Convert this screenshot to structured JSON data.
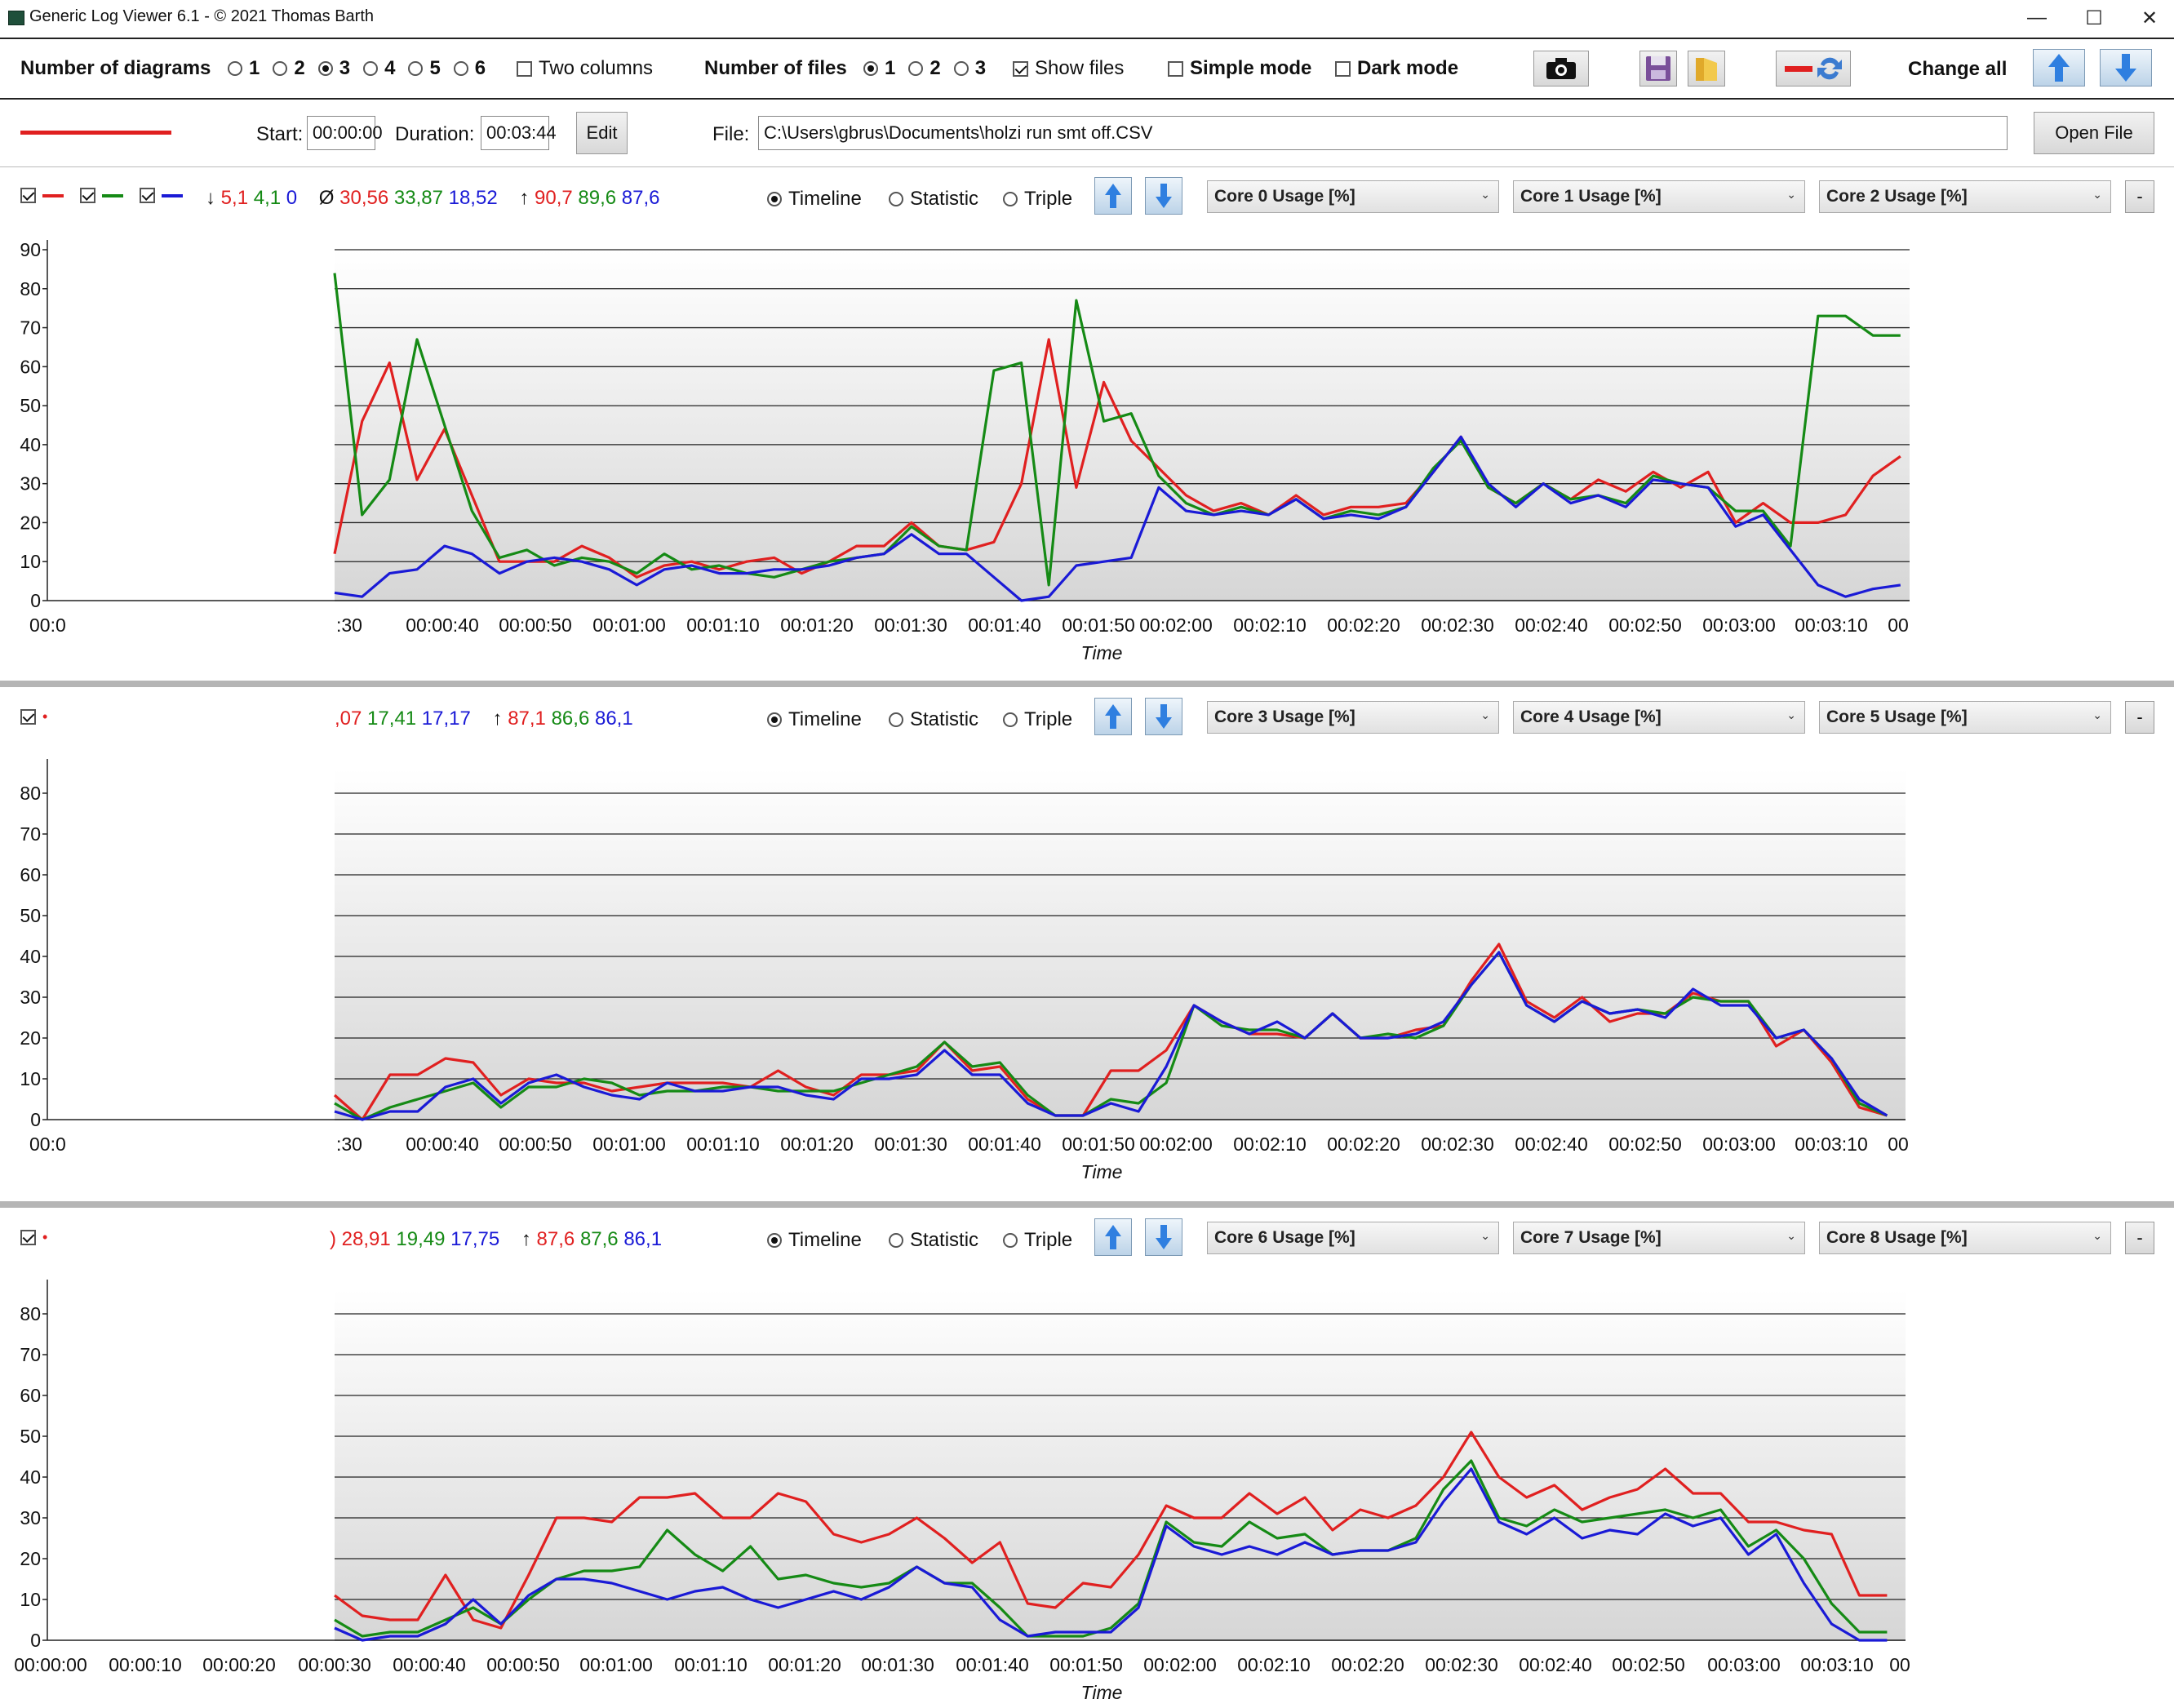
{
  "window": {
    "title": "Generic Log Viewer 6.1 - © 2021 Thomas Barth",
    "minimize": "—",
    "maximize": "☐",
    "close": "✕"
  },
  "toolbar": {
    "diagrams_label": "Number of diagrams",
    "diagram_options": [
      "1",
      "2",
      "3",
      "4",
      "5",
      "6"
    ],
    "diagram_selected": "3",
    "two_columns": "Two columns",
    "files_label": "Number of files",
    "file_options": [
      "1",
      "2",
      "3"
    ],
    "file_selected": "1",
    "show_files": "Show files",
    "simple_mode": "Simple mode",
    "dark_mode": "Dark mode",
    "change_all": "Change all",
    "icons": [
      "camera-icon",
      "save-icon",
      "folder-icon",
      "swap-icon",
      "arrow-up-icon",
      "arrow-down-icon"
    ]
  },
  "file_row": {
    "start_label": "Start:",
    "start_value": "00:00:00",
    "duration_label": "Duration:",
    "duration_value": "00:03:44",
    "edit": "Edit",
    "file_label": "File:",
    "file_path": "C:\\Users\\gbrus\\Documents\\holzi run smt off.CSV",
    "open_file": "Open File",
    "line_color": "#e02020"
  },
  "colors": {
    "s1": "#e02020",
    "s2": "#158a15",
    "s3": "#1a1ad6"
  },
  "panels": [
    {
      "stats": {
        "min_prefix": "↓",
        "min": [
          "5,1",
          "4,1",
          "0"
        ],
        "avg_prefix": "Ø",
        "avg": [
          "30,56",
          "33,87",
          "18,52"
        ],
        "max_prefix": "↑",
        "max": [
          "90,7",
          "89,6",
          "87,6"
        ]
      },
      "modes": [
        "Timeline",
        "Statistic",
        "Triple"
      ],
      "combos": [
        "Core 0 Usage [%]",
        "Core 1 Usage [%]",
        "Core 2 Usage [%]"
      ],
      "minus": "-"
    },
    {
      "stats": {
        "avg_partial": ",07",
        "avg": [
          "17,41",
          "17,17"
        ],
        "max_prefix": "↑",
        "max": [
          "87,1",
          "86,6",
          "86,1"
        ]
      },
      "modes": [
        "Timeline",
        "Statistic",
        "Triple"
      ],
      "combos": [
        "Core 3 Usage [%]",
        "Core 4 Usage [%]",
        "Core 5 Usage [%]"
      ],
      "minus": "-"
    },
    {
      "stats": {
        "avg_partial": ")",
        "avg": [
          "28,91",
          "19,49",
          "17,75"
        ],
        "max_prefix": "↑",
        "max": [
          "87,6",
          "87,6",
          "86,1"
        ]
      },
      "modes": [
        "Timeline",
        "Statistic",
        "Triple"
      ],
      "combos": [
        "Core 6 Usage [%]",
        "Core 7 Usage [%]",
        "Core 8 Usage [%]"
      ],
      "minus": "-"
    }
  ],
  "chart_data": [
    {
      "type": "line",
      "xlabel": "Time",
      "ylim": [
        0,
        90
      ],
      "yticks": [
        0,
        10,
        20,
        30,
        40,
        50,
        60,
        70,
        80,
        90
      ],
      "xticks": [
        "00:0",
        ":30",
        "00:00:40",
        "00:00:50",
        "00:01:00",
        "00:01:10",
        "00:01:20",
        "00:01:30",
        "00:01:40",
        "00:01:50",
        "00:02:00",
        "00:02:10",
        "00:02:20",
        "00:02:30",
        "00:02:40",
        "00:02:50",
        "00:03:00",
        "00:03:10",
        "00"
      ],
      "x": [
        30,
        33,
        36,
        39,
        42,
        45,
        48,
        51,
        54,
        57,
        60,
        63,
        66,
        69,
        72,
        75,
        78,
        81,
        84,
        87,
        90,
        93,
        96,
        99,
        102,
        105,
        108,
        111,
        114,
        117,
        120,
        123,
        126,
        129,
        132,
        135,
        138,
        141,
        144,
        147,
        150,
        153,
        156,
        159,
        162,
        165,
        168,
        171,
        174,
        177,
        180,
        183,
        186,
        189,
        192,
        195,
        198,
        201
      ],
      "series": [
        {
          "values": [
            12,
            46,
            61,
            31,
            44,
            27,
            10,
            10,
            10,
            14,
            11,
            6,
            9,
            10,
            8,
            10,
            11,
            7,
            10,
            14,
            14,
            20,
            14,
            13,
            15,
            30,
            67,
            29,
            56,
            41,
            34,
            27,
            23,
            25,
            22,
            27,
            22,
            24,
            24,
            25,
            33,
            42,
            29,
            25,
            30,
            26,
            31,
            28,
            33,
            29,
            33,
            20,
            25,
            20,
            20,
            22,
            32,
            37
          ]
        },
        {
          "values": [
            84,
            22,
            31,
            67,
            45,
            23,
            11,
            13,
            9,
            11,
            10,
            7,
            12,
            8,
            9,
            7,
            6,
            8,
            10,
            11,
            12,
            19,
            14,
            13,
            59,
            61,
            4,
            77,
            46,
            48,
            32,
            25,
            22,
            24,
            22,
            26,
            21,
            23,
            22,
            24,
            34,
            41,
            29,
            25,
            30,
            26,
            27,
            25,
            32,
            30,
            29,
            23,
            23,
            14,
            73,
            73,
            68,
            68
          ]
        },
        {
          "values": [
            2,
            1,
            7,
            8,
            14,
            12,
            7,
            10,
            11,
            10,
            8,
            4,
            8,
            9,
            7,
            7,
            8,
            8,
            9,
            11,
            12,
            17,
            12,
            12,
            6,
            0,
            1,
            9,
            10,
            11,
            29,
            23,
            22,
            23,
            22,
            26,
            21,
            22,
            21,
            24,
            33,
            42,
            30,
            24,
            30,
            25,
            27,
            24,
            31,
            30,
            29,
            19,
            22,
            13,
            4,
            1,
            3,
            4
          ]
        }
      ]
    },
    {
      "type": "line",
      "xlabel": "Time",
      "ylim": [
        0,
        86
      ],
      "yticks": [
        0,
        10,
        20,
        30,
        40,
        50,
        60,
        70,
        80
      ],
      "xticks": [
        "00:0",
        ":30",
        "00:00:40",
        "00:00:50",
        "00:01:00",
        "00:01:10",
        "00:01:20",
        "00:01:30",
        "00:01:40",
        "00:01:50",
        "00:02:00",
        "00:02:10",
        "00:02:20",
        "00:02:30",
        "00:02:40",
        "00:02:50",
        "00:03:00",
        "00:03:10",
        "00"
      ],
      "x": [
        30,
        33,
        36,
        39,
        42,
        45,
        48,
        51,
        54,
        57,
        60,
        63,
        66,
        69,
        72,
        75,
        78,
        81,
        84,
        87,
        90,
        93,
        96,
        99,
        102,
        105,
        108,
        111,
        114,
        117,
        120,
        123,
        126,
        129,
        132,
        135,
        138,
        141,
        144,
        147,
        150,
        153,
        156,
        159,
        162,
        165,
        168,
        171,
        174,
        177,
        180,
        183,
        186,
        189,
        192,
        195,
        198
      ],
      "series": [
        {
          "values": [
            6,
            0,
            11,
            11,
            15,
            14,
            6,
            10,
            9,
            9,
            7,
            8,
            9,
            9,
            9,
            8,
            12,
            8,
            6,
            11,
            11,
            12,
            19,
            12,
            13,
            5,
            1,
            1,
            12,
            12,
            17,
            28,
            24,
            21,
            21,
            20,
            26,
            20,
            20,
            22,
            23,
            34,
            43,
            29,
            25,
            30,
            24,
            26,
            26,
            31,
            29,
            29,
            18,
            22,
            14,
            3,
            1
          ]
        },
        {
          "values": [
            4,
            0,
            3,
            5,
            7,
            9,
            3,
            8,
            8,
            10,
            9,
            6,
            7,
            7,
            8,
            8,
            7,
            7,
            7,
            9,
            11,
            13,
            19,
            13,
            14,
            6,
            1,
            1,
            5,
            4,
            9,
            28,
            23,
            22,
            22,
            20,
            26,
            20,
            21,
            20,
            23,
            33,
            41,
            28,
            24,
            29,
            26,
            27,
            26,
            30,
            29,
            29,
            20,
            22,
            15,
            4,
            1
          ]
        },
        {
          "values": [
            2,
            0,
            2,
            2,
            8,
            10,
            4,
            9,
            11,
            8,
            6,
            5,
            9,
            7,
            7,
            8,
            8,
            6,
            5,
            10,
            10,
            11,
            17,
            11,
            11,
            4,
            1,
            1,
            4,
            2,
            13,
            28,
            24,
            21,
            24,
            20,
            26,
            20,
            20,
            21,
            24,
            33,
            41,
            28,
            24,
            29,
            26,
            27,
            25,
            32,
            28,
            28,
            20,
            22,
            15,
            5,
            1
          ]
        }
      ]
    },
    {
      "type": "line",
      "xlabel": "Time",
      "ylim": [
        0,
        86
      ],
      "yticks": [
        0,
        10,
        20,
        30,
        40,
        50,
        60,
        70,
        80
      ],
      "xticks": [
        "00:00:00",
        "00:00:10",
        "00:00:20",
        "00:00:30",
        "00:00:40",
        "00:00:50",
        "00:01:00",
        "00:01:10",
        "00:01:20",
        "00:01:30",
        "00:01:40",
        "00:01:50",
        "00:02:00",
        "00:02:10",
        "00:02:20",
        "00:02:30",
        "00:02:40",
        "00:02:50",
        "00:03:00",
        "00:03:10",
        "00"
      ],
      "x": [
        30,
        33,
        36,
        39,
        42,
        45,
        48,
        51,
        54,
        57,
        60,
        63,
        66,
        69,
        72,
        75,
        78,
        81,
        84,
        87,
        90,
        93,
        96,
        99,
        102,
        105,
        108,
        111,
        114,
        117,
        120,
        123,
        126,
        129,
        132,
        135,
        138,
        141,
        144,
        147,
        150,
        153,
        156,
        159,
        162,
        165,
        168,
        171,
        174,
        177,
        180,
        183,
        186,
        189,
        192,
        195,
        198
      ],
      "series": [
        {
          "values": [
            11,
            6,
            5,
            5,
            16,
            5,
            3,
            16,
            30,
            30,
            29,
            35,
            35,
            36,
            30,
            30,
            36,
            34,
            26,
            24,
            26,
            30,
            25,
            19,
            24,
            9,
            8,
            14,
            13,
            21,
            33,
            30,
            30,
            36,
            31,
            35,
            27,
            32,
            30,
            33,
            40,
            51,
            40,
            35,
            38,
            32,
            35,
            37,
            42,
            36,
            36,
            29,
            29,
            27,
            26,
            11,
            11
          ]
        },
        {
          "values": [
            5,
            1,
            2,
            2,
            5,
            8,
            4,
            10,
            15,
            17,
            17,
            18,
            27,
            21,
            17,
            23,
            15,
            16,
            14,
            13,
            14,
            18,
            14,
            14,
            8,
            1,
            1,
            1,
            3,
            9,
            29,
            24,
            23,
            29,
            25,
            26,
            21,
            22,
            22,
            25,
            37,
            44,
            30,
            28,
            32,
            29,
            30,
            31,
            32,
            30,
            32,
            23,
            27,
            20,
            9,
            2,
            2
          ]
        },
        {
          "values": [
            3,
            0,
            1,
            1,
            4,
            10,
            4,
            11,
            15,
            15,
            14,
            12,
            10,
            12,
            13,
            10,
            8,
            10,
            12,
            10,
            13,
            18,
            14,
            13,
            5,
            1,
            2,
            2,
            2,
            8,
            28,
            23,
            21,
            23,
            21,
            24,
            21,
            22,
            22,
            24,
            34,
            42,
            29,
            26,
            30,
            25,
            27,
            26,
            31,
            28,
            30,
            21,
            26,
            14,
            4,
            0,
            0
          ]
        }
      ]
    }
  ]
}
